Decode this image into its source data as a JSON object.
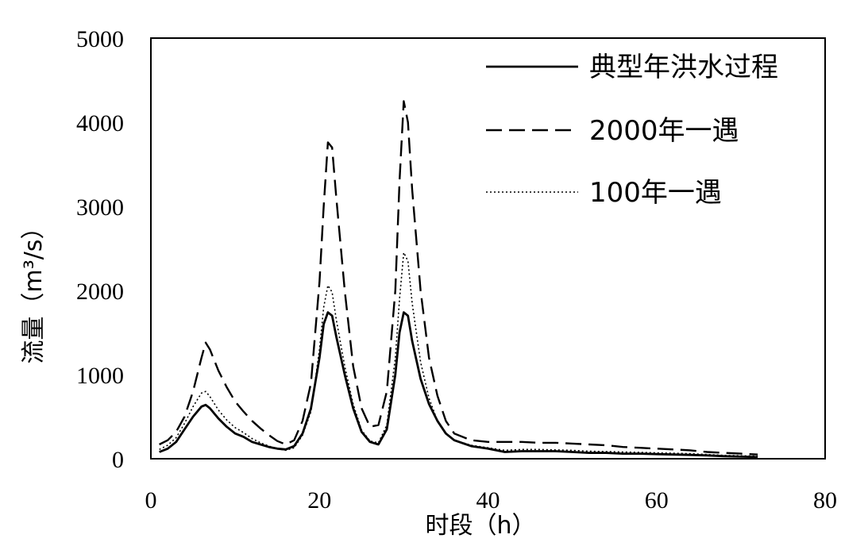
{
  "chart_data": {
    "type": "line",
    "title": "",
    "xlabel": "时段（h）",
    "ylabel": "流量（m³/s）",
    "xlim": [
      0,
      80
    ],
    "ylim": [
      0,
      5000
    ],
    "x_ticks": [
      0,
      20,
      40,
      60,
      80
    ],
    "y_ticks": [
      0,
      1000,
      2000,
      3000,
      4000,
      5000
    ],
    "grid": false,
    "legend_position": "top-right",
    "series": [
      {
        "name": "典型年洪水过程",
        "style": "solid",
        "x": [
          1,
          2,
          3,
          4,
          5,
          6,
          6.5,
          7,
          8,
          9,
          10,
          11,
          12,
          13,
          14,
          15,
          16,
          17,
          18,
          19,
          20,
          20.5,
          21,
          21.5,
          22,
          23,
          24,
          25,
          26,
          27,
          28,
          29,
          29.5,
          30,
          30.5,
          31,
          32,
          33,
          34,
          35,
          36,
          38,
          40,
          42,
          44,
          46,
          48,
          50,
          52,
          54,
          56,
          58,
          60,
          62,
          64,
          66,
          68,
          70,
          72
        ],
        "y": [
          80,
          120,
          200,
          350,
          500,
          620,
          640,
          600,
          480,
          380,
          300,
          260,
          200,
          170,
          140,
          120,
          110,
          150,
          300,
          600,
          1200,
          1600,
          1740,
          1700,
          1450,
          1000,
          600,
          320,
          200,
          170,
          350,
          1000,
          1500,
          1740,
          1700,
          1400,
          950,
          650,
          450,
          300,
          220,
          150,
          120,
          80,
          90,
          90,
          90,
          80,
          70,
          70,
          60,
          60,
          55,
          50,
          45,
          40,
          30,
          25,
          20
        ]
      },
      {
        "name": "2000年一遇",
        "style": "dashed",
        "x": [
          1,
          2,
          3,
          4,
          5,
          6,
          6.5,
          7,
          8,
          9,
          10,
          11,
          12,
          13,
          14,
          15,
          16,
          17,
          18,
          19,
          20,
          20.5,
          21,
          21.5,
          22,
          23,
          24,
          25,
          26,
          27,
          28,
          29,
          29.5,
          30,
          30.5,
          31,
          32,
          33,
          34,
          35,
          36,
          38,
          40,
          42,
          44,
          46,
          48,
          50,
          52,
          54,
          56,
          58,
          60,
          62,
          64,
          66,
          68,
          70,
          72
        ],
        "y": [
          170,
          220,
          320,
          500,
          800,
          1200,
          1380,
          1300,
          1050,
          850,
          680,
          560,
          450,
          360,
          280,
          210,
          170,
          220,
          450,
          900,
          2100,
          3000,
          3760,
          3700,
          3100,
          2000,
          1100,
          600,
          380,
          400,
          800,
          2000,
          3300,
          4250,
          4000,
          3200,
          2000,
          1200,
          750,
          450,
          300,
          220,
          200,
          200,
          200,
          190,
          190,
          180,
          170,
          160,
          140,
          130,
          120,
          110,
          100,
          80,
          70,
          60,
          50
        ]
      },
      {
        "name": "100年一遇",
        "style": "dotted",
        "x": [
          1,
          2,
          3,
          4,
          5,
          6,
          6.5,
          7,
          8,
          9,
          10,
          11,
          12,
          13,
          14,
          15,
          16,
          17,
          18,
          19,
          20,
          20.5,
          21,
          21.5,
          22,
          23,
          24,
          25,
          26,
          27,
          28,
          29,
          29.5,
          30,
          30.5,
          31,
          32,
          33,
          34,
          35,
          36,
          38,
          40,
          42,
          44,
          46,
          48,
          50,
          52,
          54,
          56,
          58,
          60,
          62,
          64,
          66,
          68,
          70,
          72
        ],
        "y": [
          110,
          160,
          250,
          420,
          620,
          780,
          800,
          740,
          580,
          460,
          370,
          310,
          240,
          190,
          150,
          120,
          100,
          130,
          280,
          560,
          1300,
          1800,
          2060,
          1980,
          1650,
          1100,
          650,
          340,
          210,
          190,
          400,
          1200,
          1900,
          2450,
          2350,
          1850,
          1150,
          720,
          450,
          300,
          220,
          160,
          130,
          100,
          110,
          110,
          105,
          100,
          90,
          85,
          80,
          75,
          70,
          65,
          60,
          50,
          40,
          35,
          30
        ]
      }
    ]
  }
}
